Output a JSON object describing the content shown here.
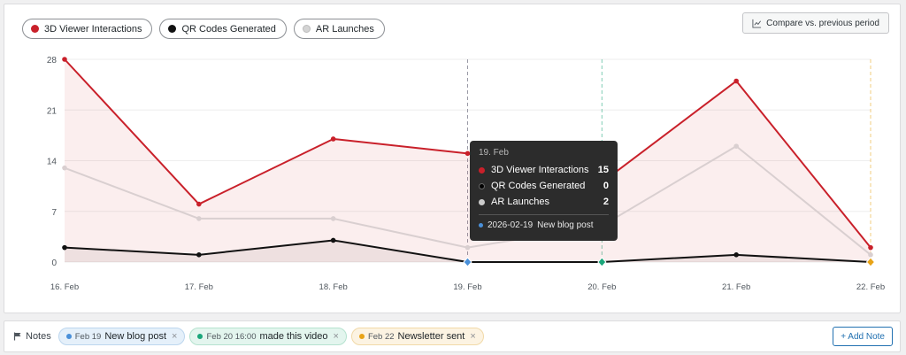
{
  "legend": [
    {
      "label": "3D Viewer Interactions",
      "color": "#c9202a"
    },
    {
      "label": "QR Codes Generated",
      "color": "#111111"
    },
    {
      "label": "AR Launches",
      "color": "#cccccc"
    }
  ],
  "compare_label": "Compare vs. previous period",
  "chart_data": {
    "type": "line",
    "categories": [
      "16. Feb",
      "17. Feb",
      "18. Feb",
      "19. Feb",
      "20. Feb",
      "21. Feb",
      "22. Feb"
    ],
    "series": [
      {
        "name": "3D Viewer Interactions",
        "color": "#c9202a",
        "fill": true,
        "values": [
          28,
          8,
          17,
          15,
          11,
          25,
          2
        ]
      },
      {
        "name": "AR Launches",
        "color": "#d9cfd0",
        "fill": false,
        "values": [
          13,
          6,
          6,
          2,
          5,
          16,
          1
        ]
      },
      {
        "name": "QR Codes Generated",
        "color": "#111111",
        "fill": false,
        "values": [
          2,
          1,
          3,
          0,
          0,
          1,
          0
        ]
      }
    ],
    "yticks": [
      0,
      7,
      14,
      21,
      28
    ],
    "ylim": [
      0,
      28
    ],
    "grid": true,
    "annotations": [
      {
        "index": 3,
        "color": "#4a90d9"
      },
      {
        "index": 4,
        "color": "#1aa67a"
      },
      {
        "index": 6,
        "color": "#e8a317"
      }
    ],
    "tooltip": {
      "date": "19. Feb",
      "rows": [
        {
          "label": "3D Viewer Interactions",
          "value": "15",
          "color": "#c9202a"
        },
        {
          "label": "QR Codes Generated",
          "value": "0",
          "color": "#111111"
        },
        {
          "label": "AR Launches",
          "value": "2",
          "color": "#cccccc"
        }
      ],
      "note_date": "2026-02-19",
      "note_text": "New blog post",
      "note_color": "#4a90d9"
    }
  },
  "notes": {
    "label": "Notes",
    "items": [
      {
        "date": "Feb 19",
        "text": "New blog post",
        "color": "#4a90d9",
        "bg": "#e5f0fa",
        "border": "#bcd6ee"
      },
      {
        "date": "Feb 20 16:00",
        "text": "made this video",
        "color": "#1aa67a",
        "bg": "#e3f5ee",
        "border": "#b5e2cf"
      },
      {
        "date": "Feb 22",
        "text": "Newsletter sent",
        "color": "#e8a317",
        "bg": "#fcf3e2",
        "border": "#f1d9a8"
      }
    ],
    "close_glyph": "×",
    "add_label": "+ Add Note"
  }
}
